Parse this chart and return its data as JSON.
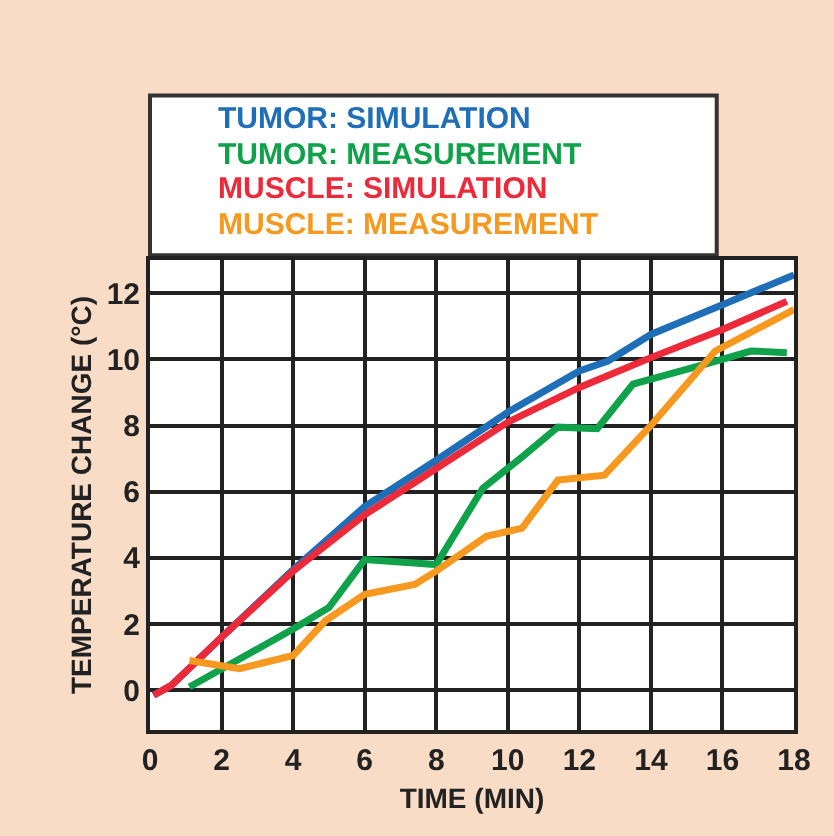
{
  "chart_data": {
    "type": "line",
    "xlabel": "TIME (MIN)",
    "ylabel": "TEMPERATURE CHANGE (°C)",
    "xlim": [
      0,
      18
    ],
    "ylim": [
      -1.2,
      13
    ],
    "xticks": [
      0,
      2,
      4,
      6,
      8,
      10,
      12,
      14,
      16,
      18
    ],
    "yticks": [
      0,
      2,
      4,
      6,
      8,
      10,
      12
    ],
    "grid": true,
    "legend": "top",
    "marker": "none",
    "line_style": "solid",
    "series": [
      {
        "name": "TUMOR: SIMULATION",
        "color": "#1f6fb8",
        "x": [
          0.1,
          0.6,
          2,
          4,
          6,
          8,
          10,
          12,
          12.8,
          14,
          16,
          18
        ],
        "values": [
          -0.15,
          0.15,
          1.6,
          3.65,
          5.55,
          6.95,
          8.4,
          9.65,
          9.95,
          10.75,
          11.65,
          12.55
        ]
      },
      {
        "name": "TUMOR: MEASUREMENT",
        "color": "#0fa24a",
        "x": [
          1.1,
          4,
          5,
          6,
          8,
          9.3,
          10.4,
          11.4,
          12.5,
          13.5,
          15.5,
          16.8,
          17.8
        ],
        "values": [
          0.1,
          1.85,
          2.5,
          3.95,
          3.8,
          6.1,
          7.05,
          7.95,
          7.9,
          9.25,
          9.85,
          10.25,
          10.2
        ]
      },
      {
        "name": "MUSCLE: SIMULATION",
        "color": "#ec2a3a",
        "x": [
          0.1,
          0.6,
          2,
          4,
          6,
          8,
          10,
          12,
          14,
          16,
          17.8
        ],
        "values": [
          -0.15,
          0.15,
          1.6,
          3.6,
          5.3,
          6.7,
          8.1,
          9.15,
          10.05,
          10.9,
          11.75
        ]
      },
      {
        "name": "MUSCLE: MEASUREMENT",
        "color": "#f7981f",
        "x": [
          1.1,
          2.5,
          4,
          4.9,
          6,
          7.4,
          8,
          9.4,
          10.4,
          11.4,
          12.7,
          14,
          15.8,
          18
        ],
        "values": [
          0.9,
          0.65,
          1.05,
          2.1,
          2.9,
          3.2,
          3.6,
          4.65,
          4.9,
          6.35,
          6.5,
          8,
          10.25,
          11.5
        ]
      }
    ]
  }
}
